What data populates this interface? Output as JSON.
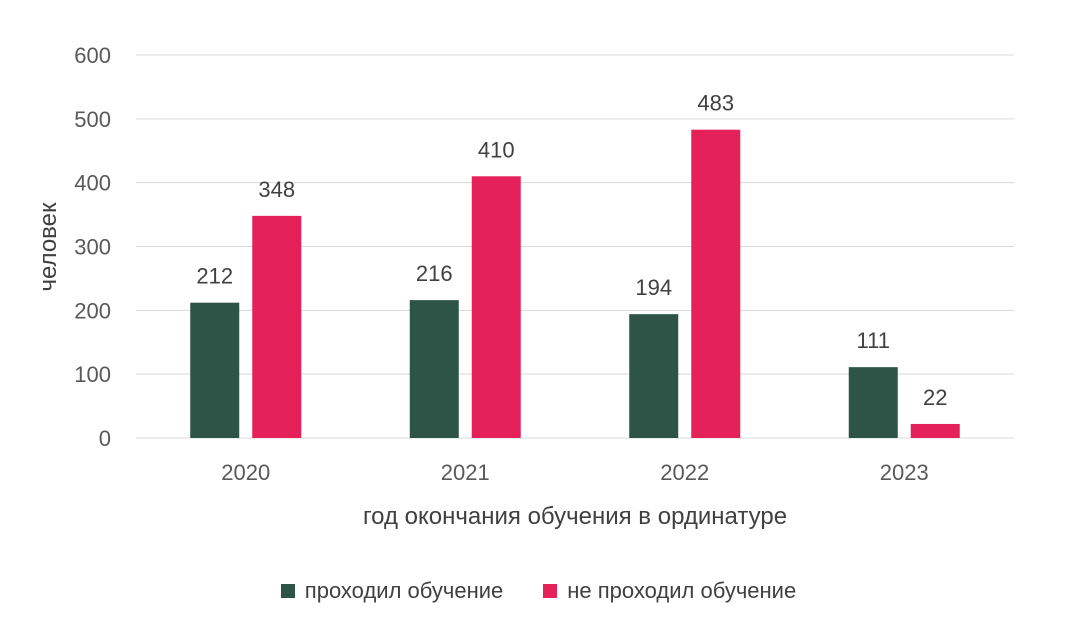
{
  "chart_data": {
    "type": "bar",
    "categories": [
      "2020",
      "2021",
      "2022",
      "2023"
    ],
    "series": [
      {
        "name": "проходил обучение",
        "values": [
          212,
          216,
          194,
          111
        ],
        "color": "#2d5446"
      },
      {
        "name": "не проходил обучение",
        "values": [
          348,
          410,
          483,
          22
        ],
        "color": "#e5215a"
      }
    ],
    "xlabel": "год окончания обучения в ординатуре",
    "ylabel": "человек",
    "ylim": [
      0,
      600
    ],
    "yticks": [
      0,
      100,
      200,
      300,
      400,
      500,
      600
    ],
    "grid": true,
    "legend_position": "bottom",
    "gridline_color": "#d9d9d9"
  }
}
